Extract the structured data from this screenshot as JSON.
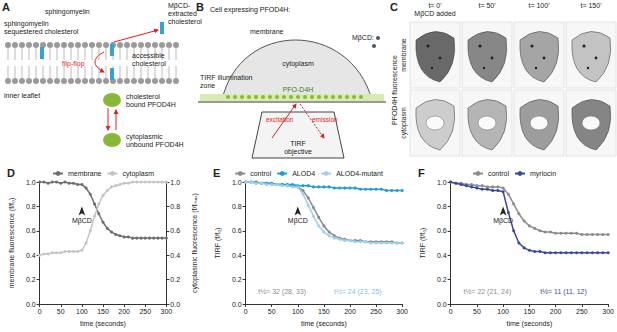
{
  "panel_a": {
    "label": "A",
    "sphingomyelin": "sphingomyelin",
    "sequestered": [
      "sphingomyelin",
      "sequestered cholesterol"
    ],
    "accessible": [
      "accessible",
      "cholesterol"
    ],
    "extracted": [
      "MβCD-",
      "extracted",
      "cholesterol"
    ],
    "flip_flop": "flip-flop",
    "inner_leaflet": "inner leaflet",
    "bound": [
      "cholesterol",
      "bound PFOD4H"
    ],
    "unbound": [
      "cytoplasmic",
      "unbound PFOD4H"
    ]
  },
  "panel_b": {
    "label": "B",
    "title": "Cell expressing PFOD4H:",
    "membrane": "membrane",
    "cytoplasm": "cytoplasm",
    "mbcd": "MβCD:",
    "tirf_zone": [
      "TIRF illumination",
      "zone"
    ],
    "probe": "PFO-D4H",
    "excitation": "excitation",
    "emission": "emission",
    "objective": [
      "TIRF",
      "objective"
    ]
  },
  "panel_c": {
    "label": "C",
    "times": [
      [
        "t= 0'",
        "MβCD added"
      ],
      [
        "t= 50'"
      ],
      [
        "t= 100'"
      ],
      [
        "t= 150'"
      ]
    ],
    "row_group": "PFOD4H fluorescence",
    "rows": [
      "membrane",
      "cytoplasm"
    ]
  },
  "chart_data": [
    {
      "type": "line",
      "title": "D",
      "xlabel": "time (seconds)",
      "ylabel": "membrane fluorescence (f/f₀)",
      "y2label": "cytoplasmic fluorescence (f/fₘₐₓ)",
      "x": [
        0,
        10,
        20,
        30,
        40,
        50,
        60,
        70,
        80,
        90,
        100,
        110,
        120,
        130,
        140,
        150,
        160,
        170,
        180,
        190,
        200,
        210,
        220,
        230,
        240,
        250,
        260,
        270,
        280,
        290,
        300
      ],
      "xlim": [
        0,
        300
      ],
      "xticks": [
        0,
        50,
        100,
        150,
        200,
        250,
        300
      ],
      "ylim": [
        0,
        1
      ],
      "yticks": [
        {
          "value": 0,
          "label": "0.0"
        },
        0.2,
        0.4,
        0.6,
        0.8,
        {
          "value": 1,
          "label": "1.0"
        }
      ],
      "y2lim": [
        0,
        1
      ],
      "y2ticks": [
        {
          "value": 0,
          "label": "0.0"
        },
        0.2,
        0.4,
        0.6,
        0.8,
        {
          "value": 1,
          "label": "1.0"
        }
      ],
      "legend": "top",
      "grid": false,
      "marker": "circle",
      "series": [
        {
          "name": "membrane",
          "color": "#6e6e6e",
          "values": [
            1.0,
            1.0,
            0.99,
            1.0,
            1.0,
            0.99,
            1.0,
            0.99,
            0.99,
            0.98,
            0.98,
            0.95,
            0.9,
            0.82,
            0.74,
            0.67,
            0.62,
            0.59,
            0.57,
            0.56,
            0.55,
            0.55,
            0.54,
            0.54,
            0.54,
            0.54,
            0.54,
            0.54,
            0.54,
            0.54,
            0.54
          ]
        },
        {
          "name": "cytoplasm",
          "color": "#c4c4c4",
          "axis": "y2",
          "values": [
            0.4,
            0.41,
            0.41,
            0.42,
            0.42,
            0.42,
            0.43,
            0.43,
            0.43,
            0.43,
            0.44,
            0.5,
            0.6,
            0.72,
            0.82,
            0.89,
            0.93,
            0.96,
            0.97,
            0.98,
            0.99,
            0.99,
            1.0,
            1.0,
            1.0,
            1.0,
            1.0,
            1.0,
            1.0,
            1.0,
            1.0
          ]
        }
      ],
      "annotations": [
        {
          "text": "MβCD",
          "x": 100,
          "y": 0.8,
          "marker": "arrow"
        }
      ]
    },
    {
      "type": "line",
      "title": "E",
      "xlabel": "time (seconds)",
      "ylabel": "TIRF (f/f₀)",
      "x": [
        0,
        10,
        20,
        30,
        40,
        50,
        60,
        70,
        80,
        90,
        100,
        110,
        120,
        130,
        140,
        150,
        160,
        170,
        180,
        190,
        200,
        210,
        220,
        230,
        240,
        250,
        260,
        270,
        280,
        290,
        300
      ],
      "xlim": [
        0,
        300
      ],
      "xticks": [
        0,
        50,
        100,
        150,
        200,
        250,
        300
      ],
      "ylim": [
        0,
        1
      ],
      "yticks": [
        {
          "value": 0,
          "label": "0.0"
        },
        0.2,
        0.4,
        0.6,
        0.8,
        {
          "value": 1,
          "label": "1.0"
        }
      ],
      "legend": "top",
      "grid": false,
      "marker": "circle",
      "series": [
        {
          "name": "control",
          "color": "#8c8c8c",
          "values": [
            1.0,
            1.0,
            0.99,
            0.99,
            0.99,
            0.98,
            0.98,
            0.98,
            0.97,
            0.97,
            0.96,
            0.93,
            0.87,
            0.79,
            0.71,
            0.64,
            0.59,
            0.56,
            0.54,
            0.53,
            0.52,
            0.52,
            0.52,
            0.51,
            0.51,
            0.51,
            0.51,
            0.51,
            0.51,
            0.5,
            0.5
          ]
        },
        {
          "name": "ALOD4",
          "color": "#1f9bd7",
          "values": [
            1.0,
            1.0,
            1.0,
            0.99,
            0.99,
            0.99,
            0.98,
            0.98,
            0.98,
            0.98,
            0.97,
            0.97,
            0.97,
            0.96,
            0.96,
            0.96,
            0.96,
            0.95,
            0.95,
            0.95,
            0.95,
            0.95,
            0.94,
            0.94,
            0.94,
            0.94,
            0.94,
            0.93,
            0.93,
            0.93,
            0.93
          ]
        },
        {
          "name": "ALOD4-mutant",
          "color": "#9fd0ea",
          "values": [
            1.0,
            1.0,
            0.99,
            0.99,
            0.98,
            0.98,
            0.98,
            0.97,
            0.97,
            0.96,
            0.96,
            0.9,
            0.81,
            0.72,
            0.64,
            0.59,
            0.56,
            0.54,
            0.53,
            0.52,
            0.52,
            0.51,
            0.51,
            0.51,
            0.5,
            0.5,
            0.5,
            0.5,
            0.5,
            0.5,
            0.5
          ]
        }
      ],
      "annotations": [
        {
          "text": "MβCD",
          "x": 100,
          "y": 0.8,
          "marker": "arrow"
        },
        {
          "text": "t½= 32 (28, 33)",
          "x": 70,
          "y": 0.1,
          "color": "#8c8c8c"
        },
        {
          "text": "t½= 24 (23, 25)",
          "x": 215,
          "y": 0.1,
          "color": "#7fbfe0"
        }
      ]
    },
    {
      "type": "line",
      "title": "F",
      "xlabel": "time (seconds)",
      "ylabel": "TIRF (f/f₀)",
      "x": [
        0,
        10,
        20,
        30,
        40,
        50,
        60,
        70,
        80,
        90,
        100,
        110,
        120,
        130,
        140,
        150,
        160,
        170,
        180,
        190,
        200,
        210,
        220,
        230,
        240,
        250,
        260,
        270,
        280,
        290,
        300
      ],
      "xlim": [
        0,
        300
      ],
      "xticks": [
        0,
        50,
        100,
        150,
        200,
        250,
        300
      ],
      "ylim": [
        0,
        1
      ],
      "yticks": [
        {
          "value": 0,
          "label": "0.0"
        },
        0.2,
        0.4,
        0.6,
        0.8,
        {
          "value": 1,
          "label": "1.0"
        }
      ],
      "legend": "top",
      "grid": false,
      "marker": "circle",
      "series": [
        {
          "name": "control",
          "color": "#8c8c8c",
          "values": [
            1.0,
            0.99,
            0.99,
            0.98,
            0.98,
            0.97,
            0.97,
            0.96,
            0.96,
            0.96,
            0.95,
            0.9,
            0.82,
            0.74,
            0.68,
            0.64,
            0.62,
            0.6,
            0.59,
            0.59,
            0.58,
            0.58,
            0.58,
            0.58,
            0.58,
            0.57,
            0.57,
            0.57,
            0.57,
            0.57,
            0.57
          ]
        },
        {
          "name": "myriocin",
          "color": "#3a4a9a",
          "values": [
            1.0,
            0.99,
            0.98,
            0.97,
            0.96,
            0.95,
            0.94,
            0.94,
            0.93,
            0.93,
            0.92,
            0.75,
            0.6,
            0.5,
            0.46,
            0.44,
            0.43,
            0.43,
            0.42,
            0.42,
            0.42,
            0.42,
            0.42,
            0.42,
            0.42,
            0.42,
            0.42,
            0.42,
            0.42,
            0.42,
            0.42
          ]
        }
      ],
      "annotations": [
        {
          "text": "MβCD",
          "x": 100,
          "y": 0.8,
          "marker": "arrow"
        },
        {
          "text": "t½= 22 (21, 24)",
          "x": 70,
          "y": 0.1,
          "color": "#8c8c8c"
        },
        {
          "text": "t½= 11 (11, 12)",
          "x": 215,
          "y": 0.1,
          "color": "#3a4a9a"
        }
      ]
    }
  ]
}
